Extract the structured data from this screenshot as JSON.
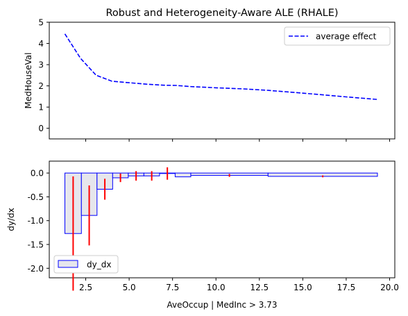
{
  "title": "Robust and Heterogeneity-Aware ALE (RHALE)",
  "colors": {
    "effect": "#0000ff",
    "bar_fill": "#e6e6ec",
    "bar_edge": "#0000ff",
    "error": "#ff0000",
    "axis": "#000000"
  },
  "chart_data": [
    {
      "type": "line",
      "ylabel": "MedHouseVal",
      "xlabel": "",
      "xlim": [
        0.4,
        20.3
      ],
      "ylim": [
        -0.5,
        5
      ],
      "yticks": [
        0,
        1,
        2,
        3,
        4,
        5
      ],
      "grid": false,
      "legend": {
        "position": "top-right",
        "label": "average effect"
      },
      "series": [
        {
          "name": "average effect",
          "style": "dashed",
          "x": [
            1.3,
            2.2,
            3.1,
            4.0,
            5.0,
            6.0,
            7.0,
            7.7,
            8.5,
            10.0,
            11.5,
            13.0,
            14.5,
            16.0,
            17.5,
            19.3
          ],
          "y": [
            4.45,
            3.3,
            2.5,
            2.22,
            2.15,
            2.08,
            2.03,
            2.02,
            1.97,
            1.91,
            1.86,
            1.79,
            1.69,
            1.59,
            1.48,
            1.36
          ]
        }
      ]
    },
    {
      "type": "bar",
      "ylabel": "dy/dx",
      "xlabel": "AveOccup | MedInc > 3.73",
      "xlim": [
        0.4,
        20.3
      ],
      "ylim": [
        -2.2,
        0.25
      ],
      "xticks": [
        "2.5",
        "5.0",
        "7.5",
        "10.0",
        "12.5",
        "15.0",
        "17.5",
        "20.0"
      ],
      "yticks": [
        "0.0",
        "-0.5",
        "-1.0",
        "-1.5",
        "-2.0"
      ],
      "grid": false,
      "legend": {
        "position": "bottom-left",
        "label": "dy_dx"
      },
      "bins": [
        {
          "left": 1.3,
          "right": 2.25,
          "value": -1.27,
          "err": 1.2
        },
        {
          "left": 2.25,
          "right": 3.15,
          "value": -0.89,
          "err": 0.63
        },
        {
          "left": 3.15,
          "right": 4.05,
          "value": -0.34,
          "err": 0.22
        },
        {
          "left": 4.05,
          "right": 4.95,
          "value": -0.1,
          "err": 0.09
        },
        {
          "left": 4.95,
          "right": 5.85,
          "value": -0.06,
          "err": 0.1
        },
        {
          "left": 5.85,
          "right": 6.75,
          "value": -0.06,
          "err": 0.1
        },
        {
          "left": 6.75,
          "right": 7.65,
          "value": -0.01,
          "err": 0.13
        },
        {
          "left": 7.65,
          "right": 8.55,
          "value": -0.08,
          "err": 0.0
        },
        {
          "left": 8.55,
          "right": 13.0,
          "value": -0.05,
          "err": 0.03
        },
        {
          "left": 13.0,
          "right": 19.3,
          "value": -0.07,
          "err": 0.02
        }
      ]
    }
  ]
}
